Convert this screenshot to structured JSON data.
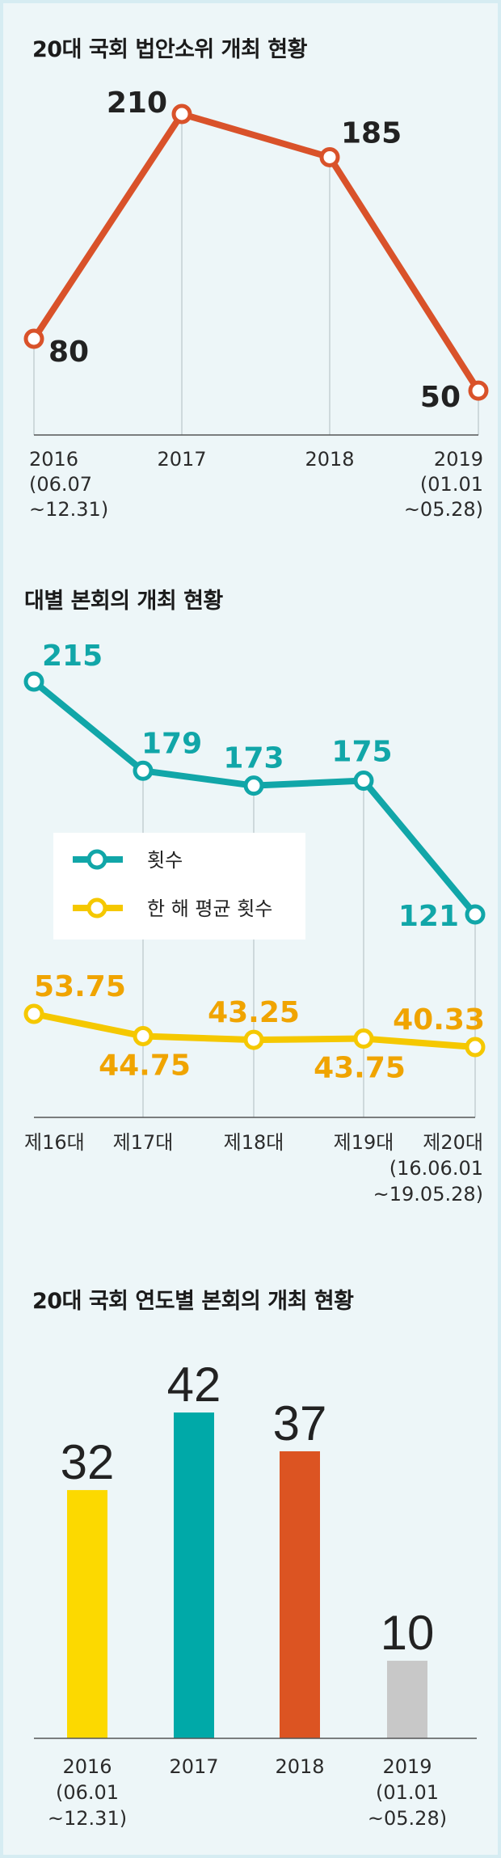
{
  "colors": {
    "orange": "#d9522a",
    "teal": "#11a6a8",
    "yellow": "#f5c800",
    "yellow_text": "#f0a400",
    "gray": "#c8c8c8",
    "axis": "#555555",
    "grid": "#b9c6c9"
  },
  "chart_data": [
    {
      "type": "line",
      "title": "20대 국회 법안소위 개최 현황",
      "categories": [
        "2016\n(06.07\n~12.31)",
        "2017",
        "2018",
        "2019\n(01.01\n~05.28)"
      ],
      "series": [
        {
          "values": [
            80,
            210,
            185,
            50
          ],
          "color": "#d9522a"
        }
      ],
      "ylim": [
        40,
        225
      ],
      "grid": "vertical"
    },
    {
      "type": "line",
      "title": "대별 본회의 개최 현황",
      "categories": [
        "제16대",
        "제17대",
        "제18대",
        "제19대",
        "제20대\n(16.06.01\n~19.05.28)"
      ],
      "series": [
        {
          "name": "횟수",
          "values": [
            215,
            179,
            173,
            175,
            121
          ],
          "labels": [
            "215",
            "179",
            "173",
            "175",
            "121"
          ],
          "color": "#11a6a8"
        },
        {
          "name": "한 해 평균 횟수",
          "values": [
            53.75,
            44.75,
            43.25,
            43.75,
            40.33
          ],
          "labels": [
            "53.75",
            "44.75",
            "43.25",
            "43.75",
            "40.33"
          ],
          "color": "#f5c800"
        }
      ],
      "legend": "left-middle",
      "grid": "vertical"
    },
    {
      "type": "bar",
      "title": "20대 국회 연도별 본회의 개최 현황",
      "categories": [
        "2016\n(06.01\n~12.31)",
        "2017",
        "2018",
        "2019\n(01.01\n~05.28)"
      ],
      "values": [
        32,
        42,
        37,
        10
      ],
      "colors": [
        "#fcd900",
        "#00a9a8",
        "#dc5422",
        "#c8c8c8"
      ],
      "ylim": [
        0,
        45
      ]
    }
  ]
}
